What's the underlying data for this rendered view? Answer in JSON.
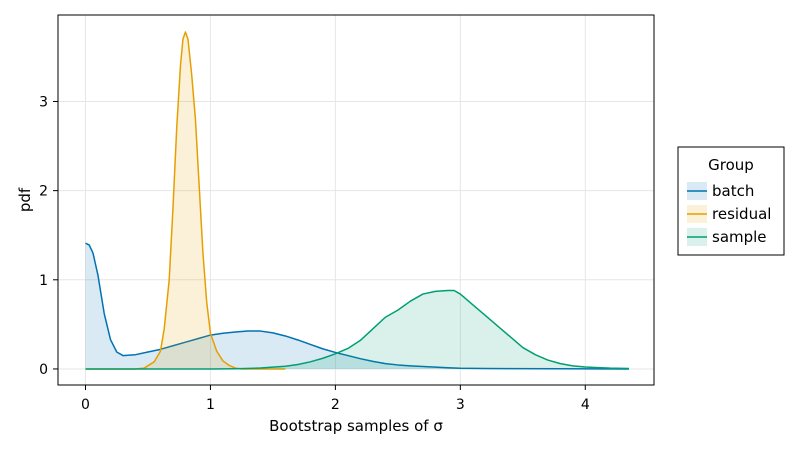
{
  "chart_data": {
    "type": "area",
    "title": "",
    "xlabel": "Bootstrap samples of σ",
    "ylabel": "pdf",
    "xlim": [
      -0.22,
      4.55
    ],
    "ylim": [
      -0.18,
      3.97
    ],
    "x_ticks": [
      0,
      1,
      2,
      3,
      4
    ],
    "y_ticks": [
      0,
      1,
      2,
      3
    ],
    "grid": true,
    "legend": {
      "title": "Group",
      "placement": "right"
    },
    "series": [
      {
        "name": "batch",
        "color": "#0072b2",
        "points": [
          [
            0.0,
            1.41
          ],
          [
            0.03,
            1.39
          ],
          [
            0.06,
            1.3
          ],
          [
            0.1,
            1.05
          ],
          [
            0.15,
            0.62
          ],
          [
            0.2,
            0.33
          ],
          [
            0.25,
            0.19
          ],
          [
            0.3,
            0.15
          ],
          [
            0.4,
            0.16
          ],
          [
            0.5,
            0.19
          ],
          [
            0.6,
            0.22
          ],
          [
            0.7,
            0.26
          ],
          [
            0.8,
            0.3
          ],
          [
            0.9,
            0.34
          ],
          [
            1.0,
            0.38
          ],
          [
            1.1,
            0.4
          ],
          [
            1.2,
            0.415
          ],
          [
            1.3,
            0.425
          ],
          [
            1.4,
            0.425
          ],
          [
            1.5,
            0.405
          ],
          [
            1.6,
            0.37
          ],
          [
            1.7,
            0.325
          ],
          [
            1.8,
            0.275
          ],
          [
            1.9,
            0.225
          ],
          [
            2.0,
            0.185
          ],
          [
            2.1,
            0.15
          ],
          [
            2.2,
            0.115
          ],
          [
            2.3,
            0.085
          ],
          [
            2.4,
            0.06
          ],
          [
            2.5,
            0.045
          ],
          [
            2.6,
            0.035
          ],
          [
            2.7,
            0.028
          ],
          [
            2.8,
            0.02
          ],
          [
            2.9,
            0.013
          ],
          [
            3.0,
            0.008
          ],
          [
            3.2,
            0.005
          ],
          [
            3.4,
            0.003
          ],
          [
            3.8,
            0.002
          ],
          [
            4.35,
            0.0
          ]
        ]
      },
      {
        "name": "residual",
        "color": "#e69f00",
        "points": [
          [
            0.0,
            0.0
          ],
          [
            0.4,
            0.0
          ],
          [
            0.47,
            0.01
          ],
          [
            0.55,
            0.08
          ],
          [
            0.6,
            0.2
          ],
          [
            0.63,
            0.45
          ],
          [
            0.67,
            1.0
          ],
          [
            0.7,
            1.8
          ],
          [
            0.73,
            2.7
          ],
          [
            0.76,
            3.4
          ],
          [
            0.78,
            3.7
          ],
          [
            0.8,
            3.78
          ],
          [
            0.82,
            3.7
          ],
          [
            0.85,
            3.3
          ],
          [
            0.88,
            2.8
          ],
          [
            0.91,
            2.05
          ],
          [
            0.94,
            1.3
          ],
          [
            0.97,
            0.75
          ],
          [
            1.0,
            0.4
          ],
          [
            1.05,
            0.2
          ],
          [
            1.1,
            0.09
          ],
          [
            1.15,
            0.04
          ],
          [
            1.2,
            0.01
          ],
          [
            1.25,
            0.0
          ],
          [
            1.6,
            0.0
          ]
        ]
      },
      {
        "name": "sample",
        "color": "#009e73",
        "points": [
          [
            0.0,
            0.0
          ],
          [
            1.0,
            0.0
          ],
          [
            1.2,
            0.002
          ],
          [
            1.4,
            0.01
          ],
          [
            1.6,
            0.03
          ],
          [
            1.7,
            0.05
          ],
          [
            1.8,
            0.08
          ],
          [
            1.9,
            0.12
          ],
          [
            2.0,
            0.17
          ],
          [
            2.1,
            0.23
          ],
          [
            2.2,
            0.32
          ],
          [
            2.3,
            0.45
          ],
          [
            2.4,
            0.58
          ],
          [
            2.5,
            0.66
          ],
          [
            2.6,
            0.76
          ],
          [
            2.7,
            0.84
          ],
          [
            2.8,
            0.87
          ],
          [
            2.9,
            0.88
          ],
          [
            2.95,
            0.88
          ],
          [
            3.0,
            0.84
          ],
          [
            3.1,
            0.72
          ],
          [
            3.2,
            0.6
          ],
          [
            3.3,
            0.48
          ],
          [
            3.4,
            0.36
          ],
          [
            3.5,
            0.24
          ],
          [
            3.6,
            0.16
          ],
          [
            3.7,
            0.1
          ],
          [
            3.8,
            0.06
          ],
          [
            3.9,
            0.035
          ],
          [
            4.0,
            0.022
          ],
          [
            4.1,
            0.015
          ],
          [
            4.2,
            0.009
          ],
          [
            4.35,
            0.005
          ]
        ]
      }
    ]
  }
}
